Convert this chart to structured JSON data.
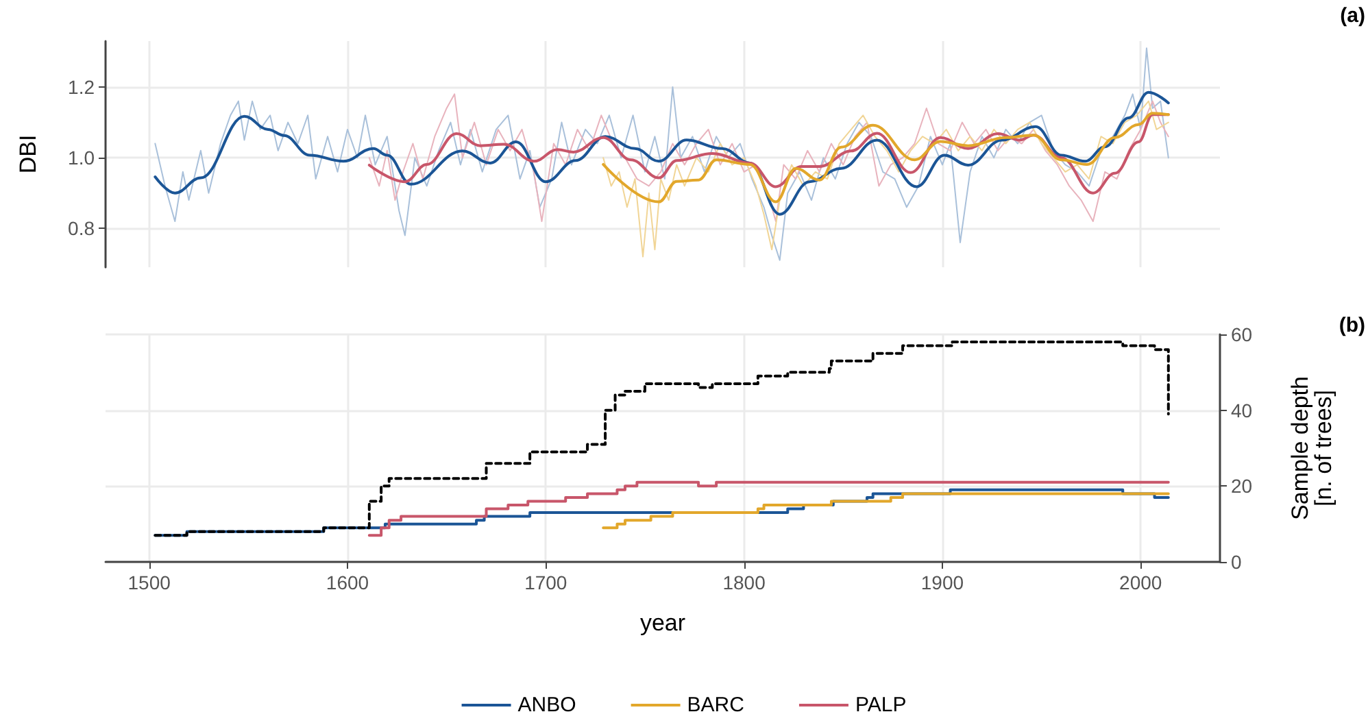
{
  "chart_data": [
    {
      "type": "line",
      "ylabel": "DBI",
      "xlim": [
        1478,
        2040
      ],
      "xticks": [
        1500,
        1600,
        1700,
        1800,
        1900,
        2000
      ],
      "ylim": [
        0.69,
        1.33
      ],
      "yticks": [
        0.8,
        {
          "value": 1.0,
          "label": "1.0"
        },
        1.2
      ],
      "tick_labels": "y",
      "grid": true,
      "legend": false,
      "marker": "none",
      "annotations": [
        "(a)"
      ],
      "series": [
        {
          "color": "#a9c0da",
          "x": [
            1503,
            1508,
            1513,
            1517,
            1520,
            1526,
            1530,
            1536,
            1541,
            1545,
            1548,
            1552,
            1556,
            1561,
            1565,
            1570,
            1575,
            1580,
            1584,
            1590,
            1595,
            1600,
            1605,
            1609,
            1614,
            1620,
            1626,
            1629,
            1634,
            1640,
            1646,
            1652,
            1657,
            1662,
            1668,
            1675,
            1681,
            1687,
            1692,
            1697,
            1703,
            1708,
            1713,
            1720,
            1726,
            1732,
            1738,
            1744,
            1750,
            1755,
            1760,
            1764,
            1768,
            1774,
            1780,
            1786,
            1792,
            1798,
            1804,
            1810,
            1814,
            1818,
            1822,
            1828,
            1834,
            1840,
            1846,
            1852,
            1858,
            1864,
            1870,
            1876,
            1882,
            1888,
            1894,
            1900,
            1904,
            1909,
            1914,
            1920,
            1926,
            1932,
            1938,
            1944,
            1950,
            1956,
            1962,
            1968,
            1974,
            1980,
            1986,
            1992,
            1996,
            2000,
            2003,
            2006,
            2010,
            2014
          ],
          "values": [
            1.04,
            0.92,
            0.82,
            0.96,
            0.88,
            1.02,
            0.9,
            1.04,
            1.12,
            1.16,
            1.05,
            1.16,
            1.08,
            1.12,
            1.02,
            1.1,
            1.04,
            1.12,
            0.94,
            1.06,
            0.96,
            1.08,
            1.0,
            1.12,
            0.98,
            1.06,
            0.85,
            0.78,
            1.0,
            0.92,
            1.02,
            1.1,
            0.98,
            1.08,
            0.96,
            1.08,
            1.12,
            0.94,
            1.02,
            0.86,
            0.94,
            1.1,
            0.98,
            1.08,
            1.04,
            1.12,
            1.0,
            1.12,
            0.96,
            1.06,
            0.94,
            1.2,
            1.0,
            1.06,
            0.96,
            1.06,
            1.0,
            1.04,
            0.94,
            0.86,
            0.78,
            0.71,
            0.9,
            0.96,
            0.88,
            1.0,
            0.94,
            1.04,
            1.1,
            1.06,
            0.96,
            0.94,
            0.86,
            0.92,
            1.06,
            0.98,
            1.04,
            0.76,
            0.96,
            1.06,
            1.0,
            1.08,
            1.04,
            1.1,
            1.12,
            1.02,
            0.98,
            0.96,
            0.92,
            1.02,
            1.06,
            1.12,
            1.18,
            1.08,
            1.31,
            1.14,
            1.16,
            1.0
          ]
        },
        {
          "color": "#e8b3bd",
          "x": [
            1611,
            1616,
            1620,
            1624,
            1628,
            1633,
            1638,
            1644,
            1650,
            1654,
            1658,
            1664,
            1670,
            1676,
            1682,
            1688,
            1694,
            1698,
            1704,
            1710,
            1716,
            1722,
            1728,
            1734,
            1740,
            1746,
            1752,
            1758,
            1764,
            1770,
            1776,
            1782,
            1788,
            1794,
            1800,
            1806,
            1812,
            1816,
            1820,
            1826,
            1832,
            1838,
            1844,
            1850,
            1856,
            1862,
            1868,
            1874,
            1880,
            1886,
            1892,
            1898,
            1904,
            1910,
            1916,
            1922,
            1928,
            1934,
            1940,
            1946,
            1952,
            1958,
            1964,
            1970,
            1976,
            1982,
            1988,
            1994,
            2000,
            2006,
            2010,
            2014
          ],
          "values": [
            1.0,
            0.92,
            1.02,
            0.88,
            0.96,
            1.04,
            0.94,
            1.06,
            1.14,
            1.18,
            1.0,
            1.1,
            0.98,
            1.08,
            1.02,
            1.08,
            0.96,
            0.82,
            1.04,
            0.98,
            1.08,
            1.02,
            1.12,
            1.04,
            1.0,
            0.94,
            0.92,
            0.96,
            1.04,
            0.98,
            1.04,
            1.08,
            0.98,
            1.04,
            0.96,
            0.98,
            0.9,
            0.82,
            0.98,
            0.94,
            1.02,
            0.96,
            1.04,
            0.98,
            1.06,
            1.1,
            0.92,
            0.98,
            1.0,
            1.04,
            1.14,
            1.04,
            1.02,
            1.1,
            1.04,
            1.08,
            1.02,
            1.06,
            1.04,
            1.08,
            1.02,
            0.98,
            0.92,
            0.88,
            0.82,
            0.96,
            0.94,
            1.02,
            1.08,
            1.16,
            1.1,
            1.06
          ]
        },
        {
          "color": "#f1d596",
          "x": [
            1729,
            1733,
            1737,
            1741,
            1745,
            1749,
            1752,
            1755,
            1758,
            1762,
            1766,
            1770,
            1776,
            1782,
            1788,
            1794,
            1800,
            1806,
            1810,
            1814,
            1818,
            1824,
            1830,
            1836,
            1842,
            1848,
            1854,
            1860,
            1866,
            1872,
            1878,
            1884,
            1890,
            1896,
            1902,
            1908,
            1914,
            1920,
            1926,
            1932,
            1938,
            1944,
            1950,
            1956,
            1962,
            1968,
            1974,
            1980,
            1986,
            1992,
            1998,
            2004,
            2008,
            2014
          ],
          "values": [
            1.0,
            0.92,
            0.96,
            0.86,
            0.94,
            0.72,
            0.9,
            0.74,
            0.94,
            0.88,
            0.98,
            0.92,
            1.0,
            0.96,
            1.04,
            0.98,
            1.0,
            0.92,
            0.84,
            0.74,
            0.88,
            0.98,
            0.92,
            0.96,
            0.94,
            1.04,
            1.08,
            1.12,
            1.06,
            1.02,
            0.96,
            1.02,
            1.06,
            1.04,
            1.08,
            1.02,
            1.06,
            1.02,
            1.08,
            1.04,
            1.08,
            1.1,
            1.04,
            1.0,
            0.96,
            0.98,
            0.94,
            1.06,
            1.04,
            1.1,
            1.12,
            1.16,
            1.08,
            1.1
          ]
        },
        {
          "color": "#1b5596",
          "x": [
            1503,
            1513,
            1526,
            1548,
            1560,
            1568,
            1581,
            1598,
            1613,
            1620,
            1632,
            1658,
            1672,
            1685,
            1700,
            1715,
            1730,
            1745,
            1757,
            1771,
            1789,
            1803,
            1818,
            1833,
            1849,
            1867,
            1887,
            1901,
            1913,
            1930,
            1947,
            1960,
            1972,
            1982,
            1994,
            2004,
            2014
          ],
          "values": [
            0.946,
            0.9,
            0.943,
            1.117,
            1.08,
            1.063,
            1.007,
            0.99,
            1.026,
            1.007,
            0.925,
            1.019,
            0.985,
            1.045,
            0.932,
            0.992,
            1.06,
            1.026,
            0.99,
            1.05,
            1.026,
            0.985,
            0.84,
            0.932,
            0.97,
            1.05,
            0.918,
            1.007,
            0.979,
            1.05,
            1.088,
            1.007,
            0.99,
            1.031,
            1.113,
            1.185,
            1.155
          ]
        },
        {
          "color": "#c8566a",
          "x": [
            1611,
            1629,
            1640,
            1655,
            1667,
            1679,
            1694,
            1706,
            1714,
            1729,
            1743,
            1757,
            1766,
            1784,
            1803,
            1816,
            1829,
            1838,
            1854,
            1867,
            1884,
            1899,
            1913,
            1928,
            1939,
            1946,
            1960,
            1976,
            1987,
            1999,
            2006,
            2014
          ],
          "values": [
            0.979,
            0.932,
            0.981,
            1.068,
            1.034,
            1.038,
            0.99,
            1.023,
            1.016,
            1.057,
            0.994,
            0.943,
            0.992,
            1.012,
            0.985,
            0.918,
            0.975,
            0.975,
            1.019,
            1.069,
            0.958,
            1.057,
            1.026,
            1.068,
            1.05,
            1.064,
            1.0,
            0.9,
            0.956,
            1.045,
            1.122,
            1.122
          ]
        },
        {
          "color": "#e2a72b",
          "x": [
            1729,
            1757,
            1766,
            1777,
            1786,
            1803,
            1816,
            1826,
            1838,
            1849,
            1865,
            1886,
            1899,
            1913,
            1932,
            1946,
            1960,
            1973,
            1987,
            1999,
            2006,
            2014
          ],
          "values": [
            0.981,
            0.875,
            0.933,
            0.937,
            0.994,
            0.981,
            0.875,
            0.97,
            0.937,
            1.03,
            1.092,
            0.994,
            1.046,
            1.034,
            1.057,
            1.064,
            0.994,
            0.981,
            1.057,
            1.094,
            1.126,
            1.122
          ]
        }
      ]
    },
    {
      "type": "step",
      "xlabel": "year",
      "y2label": "Sample depth\n[n. of trees]",
      "xlim": [
        1478,
        2040
      ],
      "xticks": [
        1500,
        1600,
        1700,
        1800,
        1900,
        2000
      ],
      "y2lim": [
        0,
        60
      ],
      "y2ticks": [
        0,
        20,
        40,
        60
      ],
      "grid": true,
      "legend": "bottom",
      "marker": "none",
      "annotations": [
        "(b)"
      ],
      "series": [
        {
          "color": "#000000",
          "axis": "y2",
          "line_style": "dashed",
          "x": [
            1503,
            1519,
            1588,
            1611,
            1617,
            1621,
            1670,
            1692,
            1721,
            1730,
            1735,
            1740,
            1750,
            1777,
            1784,
            1807,
            1822,
            1843,
            1844,
            1864,
            1865,
            1880,
            1905,
            1991,
            2007,
            2014
          ],
          "values": [
            7,
            8,
            9,
            16,
            20,
            22,
            26,
            29,
            31,
            40,
            44,
            45,
            47,
            46,
            47,
            49,
            50,
            51,
            53,
            53,
            55,
            57,
            58,
            57,
            56,
            39
          ]
        },
        {
          "name": "ANBO",
          "color": "#1b5596",
          "axis": "y2",
          "x": [
            1503,
            1519,
            1588,
            1619,
            1665,
            1669,
            1692,
            1822,
            1830,
            1845,
            1862,
            1865,
            1904,
            1991,
            2007,
            2014
          ],
          "values": [
            7,
            8,
            9,
            10,
            11,
            12,
            13,
            14,
            15,
            16,
            17,
            18,
            19,
            18,
            17,
            17
          ]
        },
        {
          "name": "BARC",
          "color": "#e2a72b",
          "axis": "y2",
          "x": [
            1729,
            1736,
            1740,
            1753,
            1764,
            1807,
            1810,
            1844,
            1874,
            1880,
            2014
          ],
          "values": [
            9,
            10,
            11,
            12,
            13,
            14,
            15,
            16,
            17,
            18,
            18
          ]
        },
        {
          "name": "PALP",
          "color": "#c8566a",
          "axis": "y2",
          "x": [
            1611,
            1617,
            1621,
            1627,
            1670,
            1681,
            1691,
            1710,
            1721,
            1736,
            1740,
            1746,
            1777,
            1786,
            2014
          ],
          "values": [
            7,
            9,
            11,
            12,
            14,
            15,
            16,
            17,
            18,
            19,
            20,
            21,
            20,
            21,
            21
          ]
        }
      ]
    }
  ]
}
